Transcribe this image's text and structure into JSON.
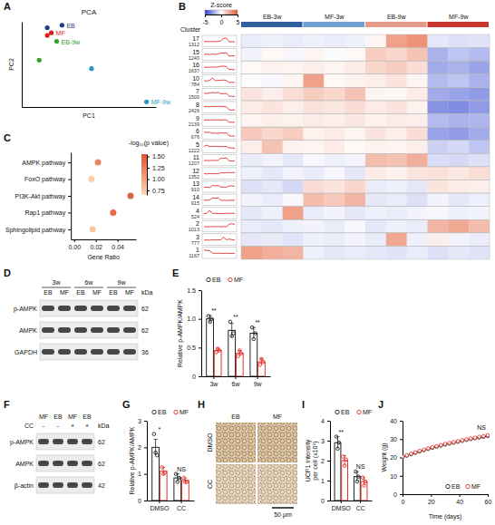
{
  "chart_data": [
    {
      "panel_label": "A",
      "type": "scatter",
      "title": "PCA",
      "x_label": "PC1",
      "y_label": "PC2",
      "xlim": [
        0.15,
        0.65
      ],
      "ylim": [
        0,
        1
      ],
      "tick_labels": false,
      "series": [
        {
          "name": "EB",
          "color": "#1f3a8a",
          "x": [
            0.3,
            0.245
          ],
          "values": [
            0.96,
            0.93
          ]
        },
        {
          "name": "MF",
          "color": "#e31a1c",
          "x": [
            0.26,
            0.245
          ],
          "values": [
            0.87,
            0.84
          ]
        },
        {
          "name": "EB-9w",
          "color": "#33a02c",
          "x": [
            0.28,
            0.215
          ],
          "values": [
            0.77,
            0.55
          ]
        },
        {
          "name": "MF-9w",
          "color": "#1f9bbf",
          "x": [
            0.41,
            0.615
          ],
          "values": [
            0.45,
            0.06
          ]
        }
      ]
    },
    {
      "panel_label": "B",
      "type": "heatmap",
      "row_header": "Cluster",
      "column_groups": [
        "EB-3w",
        "MF-3w",
        "EB-9w",
        "MF-9w"
      ],
      "colors": [
        "#2f5f9e",
        "#6fa0d0",
        "#e89a8a",
        "#c8372d"
      ],
      "color_bar": {
        "label": "Z-score",
        "range": [
          -5,
          5
        ],
        "ticks": [
          -5,
          0,
          5
        ]
      },
      "clusters": [
        {
          "name": "17",
          "count": 1312,
          "values": [
            -0.5,
            -0.4,
            -0.5,
            -0.4,
            -0.5,
            -0.4,
            0.3,
            2.8,
            3.2,
            -0.6,
            -0.8,
            -0.7
          ]
        },
        {
          "name": "15",
          "count": 1240,
          "values": [
            -0.3,
            0.2,
            -0.2,
            0.3,
            -0.1,
            0.2,
            1.5,
            1.2,
            1.8,
            -2.0,
            -1.5,
            -1.8
          ]
        },
        {
          "name": "16",
          "count": 1637,
          "values": [
            0.2,
            0.4,
            0.3,
            0.5,
            0.3,
            0.6,
            1.2,
            1.5,
            1.0,
            -2.2,
            -2.0,
            -2.4
          ]
        },
        {
          "name": "10",
          "count": 784,
          "values": [
            0.1,
            -0.2,
            0.3,
            2.8,
            0.2,
            0.4,
            0.5,
            0.8,
            0.3,
            -1.8,
            -1.5,
            -2.0
          ]
        },
        {
          "name": "7",
          "count": 1500,
          "values": [
            0.8,
            0.5,
            1.0,
            1.5,
            1.2,
            1.8,
            0.3,
            0.2,
            0.6,
            -2.2,
            -2.4,
            -2.6
          ]
        },
        {
          "name": "8",
          "count": 2426,
          "values": [
            0.6,
            0.8,
            0.5,
            0.9,
            0.7,
            1.0,
            0.6,
            0.8,
            0.4,
            -2.8,
            -3.0,
            -2.6
          ]
        },
        {
          "name": "9",
          "count": 2139,
          "values": [
            0.3,
            0.5,
            0.4,
            0.6,
            0.5,
            0.7,
            0.4,
            0.6,
            0.5,
            -1.8,
            -2.0,
            -1.9
          ]
        },
        {
          "name": "6",
          "count": 676,
          "values": [
            1.6,
            1.2,
            1.5,
            0.4,
            0.6,
            0.3,
            0.8,
            0.5,
            1.0,
            -2.4,
            -2.6,
            -2.2
          ]
        },
        {
          "name": "5",
          "count": 1222,
          "values": [
            0.5,
            1.8,
            0.4,
            0.3,
            0.6,
            0.2,
            0.4,
            0.3,
            0.5,
            -1.2,
            -1.0,
            -1.5
          ]
        },
        {
          "name": "11",
          "count": 1207,
          "values": [
            -0.5,
            -0.3,
            -0.6,
            -0.2,
            -0.4,
            -0.3,
            2.0,
            1.8,
            2.4,
            -0.9,
            -1.0,
            -0.8
          ]
        },
        {
          "name": "12",
          "count": 1352,
          "values": [
            -0.4,
            -0.6,
            -0.3,
            -0.5,
            -0.2,
            -0.6,
            0.6,
            0.4,
            0.8,
            0.9,
            0.7,
            1.0
          ]
        },
        {
          "name": "13",
          "count": 910,
          "values": [
            -0.8,
            -0.6,
            -1.0,
            1.0,
            0.8,
            1.2,
            -0.5,
            -0.4,
            -0.6,
            0.8,
            0.6,
            0.5
          ]
        },
        {
          "name": "14",
          "count": 915,
          "values": [
            -0.3,
            -0.5,
            -0.2,
            2.0,
            1.6,
            2.2,
            -0.6,
            -0.5,
            -0.8,
            -0.3,
            -0.6,
            -0.4
          ]
        },
        {
          "name": "4",
          "count": 524,
          "values": [
            -0.6,
            -0.4,
            2.8,
            -0.5,
            -0.3,
            -0.6,
            -0.4,
            -0.5,
            -0.3,
            -0.2,
            -0.4,
            -0.3
          ]
        },
        {
          "name": "2",
          "count": 1013,
          "values": [
            -0.5,
            -0.6,
            -0.4,
            -0.3,
            -0.5,
            -0.2,
            -0.6,
            -0.4,
            -0.5,
            2.2,
            2.6,
            2.0
          ]
        },
        {
          "name": "3",
          "count": 777,
          "values": [
            -0.6,
            -0.5,
            -0.7,
            -0.4,
            -0.5,
            -0.3,
            -0.5,
            2.6,
            -0.4,
            0.5,
            -0.3,
            -0.5
          ]
        },
        {
          "name": "1",
          "count": 1167,
          "values": [
            2.8,
            2.4,
            2.2,
            -0.4,
            -0.6,
            -0.5,
            -0.6,
            -0.7,
            -0.5,
            -0.8,
            -0.6,
            -0.7
          ]
        }
      ]
    },
    {
      "panel_label": "C",
      "type": "dot",
      "orientation": "horizontal",
      "x_label": "Gene Ratio",
      "categories": [
        "AMPK pathway",
        "FoxO pathway",
        "PI3K-Akt pathway",
        "Rap1 pathway",
        "Sphingolipid pathway"
      ],
      "values": [
        0.022,
        0.016,
        0.052,
        0.036,
        0.017
      ],
      "color_values": [
        1.2,
        0.72,
        1.45,
        1.38,
        0.78
      ],
      "xlim": [
        -0.003,
        0.057
      ],
      "xticks": [
        {
          "value": 0,
          "label": "0.00"
        },
        {
          "value": 0.02,
          "label": "0.02"
        },
        {
          "value": 0.04,
          "label": "0.04"
        }
      ],
      "color_bar": {
        "label": "-log₁₀(p value)",
        "range": [
          0.65,
          1.55
        ],
        "ticks": [
          {
            "value": 1.5,
            "label": "1.50"
          },
          {
            "value": 1.25,
            "label": "1.25"
          },
          {
            "value": 1,
            "label": "1.00"
          },
          {
            "value": 0.75,
            "label": "0.75"
          }
        ]
      }
    },
    {
      "panel_label": "E",
      "type": "bar",
      "y_label": "Relative p-AMPK/AMPK",
      "categories": [
        "3w",
        "6w",
        "9w"
      ],
      "ylim": [
        0,
        1.5
      ],
      "yticks": [
        0,
        0.5,
        {
          "value": 1,
          "label": "1.0"
        },
        1.5
      ],
      "legend": "top",
      "marker": "circle",
      "annotations": [
        "**",
        "**",
        "**"
      ],
      "series": [
        {
          "name": "EB",
          "color": "#222222",
          "values": [
            1.0,
            0.8,
            0.75
          ],
          "errors": [
            0.06,
            0.12,
            0.1
          ],
          "points": [
            [
              1.05,
              0.95,
              1.0
            ],
            [
              0.95,
              0.7,
              0.75
            ],
            [
              0.85,
              0.65,
              0.75
            ]
          ]
        },
        {
          "name": "MF",
          "color": "#e0302a",
          "values": [
            0.45,
            0.4,
            0.25
          ],
          "errors": [
            0.04,
            0.05,
            0.06
          ],
          "points": [
            [
              0.42,
              0.48,
              0.45
            ],
            [
              0.35,
              0.45,
              0.4
            ],
            [
              0.2,
              0.3,
              0.25
            ]
          ]
        }
      ]
    },
    {
      "panel_label": "G",
      "type": "bar",
      "y_label": "Relative p-AMPK/AMPK",
      "categories": [
        "DMSO",
        "CC"
      ],
      "ylim": [
        0,
        3
      ],
      "yticks": [
        0,
        1,
        2,
        3
      ],
      "legend": "top",
      "marker": "circle",
      "annotations": [
        "*",
        "NS"
      ],
      "series": [
        {
          "name": "EB",
          "color": "#222222",
          "values": [
            2.0,
            0.85
          ],
          "errors": [
            0.3,
            0.15
          ],
          "points": [
            [
              2.5,
              1.8,
              1.7
            ],
            [
              1.0,
              0.7,
              0.85
            ]
          ]
        },
        {
          "name": "MF",
          "color": "#e0302a",
          "values": [
            1.1,
            0.75
          ],
          "errors": [
            0.15,
            0.1
          ],
          "points": [
            [
              1.25,
              1.0,
              1.05
            ],
            [
              0.85,
              0.7,
              0.7
            ]
          ]
        }
      ]
    },
    {
      "panel_label": "I",
      "type": "bar",
      "y_label": "UCP1 Intensity per cell (x10⁵)",
      "categories": [
        "DMSO",
        "CC"
      ],
      "ylim": [
        0,
        4
      ],
      "yticks": [
        0,
        1,
        2,
        3,
        4
      ],
      "legend": "top",
      "marker": "circle",
      "annotations": [
        "**",
        "NS"
      ],
      "series": [
        {
          "name": "EB",
          "color": "#222222",
          "values": [
            2.9,
            1.2
          ],
          "errors": [
            0.3,
            0.25
          ],
          "points": [
            [
              3.2,
              2.6,
              2.9
            ],
            [
              1.45,
              0.95,
              1.2
            ]
          ]
        },
        {
          "name": "MF",
          "color": "#e0302a",
          "values": [
            2.0,
            0.95
          ],
          "errors": [
            0.25,
            0.2
          ],
          "points": [
            [
              2.2,
              1.75,
              2.05
            ],
            [
              1.15,
              0.75,
              0.95
            ]
          ]
        }
      ]
    },
    {
      "panel_label": "J",
      "type": "line",
      "x_label": "Time (days)",
      "y_label": "Weight (g)",
      "xlim": [
        0,
        60
      ],
      "xticks": [
        0,
        20,
        40,
        60
      ],
      "ylim": [
        0,
        40
      ],
      "yticks": [
        0,
        10,
        20,
        30,
        40
      ],
      "legend": "bottom-right",
      "marker": "circle",
      "annotation": "NS",
      "x": [
        0,
        3,
        6,
        9,
        12,
        15,
        18,
        21,
        24,
        27,
        30,
        33,
        36,
        39,
        42,
        45,
        48,
        51,
        54,
        57,
        60
      ],
      "series": [
        {
          "name": "EB",
          "color": "#222222",
          "values": [
            20.0,
            20.9,
            21.7,
            22.5,
            23.2,
            23.9,
            24.6,
            25.2,
            25.8,
            26.4,
            27.0,
            27.5,
            28.0,
            28.5,
            29.0,
            29.5,
            30.0,
            30.4,
            30.8,
            31.2,
            31.6
          ]
        },
        {
          "name": "MF",
          "color": "#e0302a",
          "values": [
            20.3,
            21.2,
            22.0,
            22.8,
            23.6,
            24.3,
            25.0,
            25.6,
            26.2,
            26.8,
            27.4,
            27.9,
            28.4,
            28.9,
            29.4,
            29.9,
            30.4,
            30.8,
            31.3,
            31.7,
            32.1
          ]
        }
      ]
    }
  ],
  "blots": {
    "D": {
      "panel_label": "D",
      "groups": [
        "3w",
        "6w",
        "9w"
      ],
      "lanes": [
        "EB",
        "MF",
        "EB",
        "MF",
        "EB",
        "MF"
      ],
      "unit": "kDa",
      "rows": [
        {
          "name": "p-AMPK",
          "kda": 62
        },
        {
          "name": "AMPK",
          "kda": 62
        },
        {
          "name": "GAPDH",
          "kda": 36
        }
      ]
    },
    "F": {
      "panel_label": "F",
      "lanes": [
        "MF",
        "EB",
        "MF",
        "EB"
      ],
      "treatment": {
        "name": "CC",
        "values": [
          "-",
          "-",
          "+",
          "+"
        ]
      },
      "unit": "kDa",
      "rows": [
        {
          "name": "p-AMPK",
          "kda": 62
        },
        {
          "name": "AMPK",
          "kda": 62
        },
        {
          "name": "β-actin",
          "kda": 42
        }
      ]
    }
  },
  "micrograph": {
    "panel_label": "H",
    "columns": [
      "EB",
      "MF"
    ],
    "rows": [
      "DMSO",
      "CC"
    ],
    "scale_bar": "50 μm"
  }
}
